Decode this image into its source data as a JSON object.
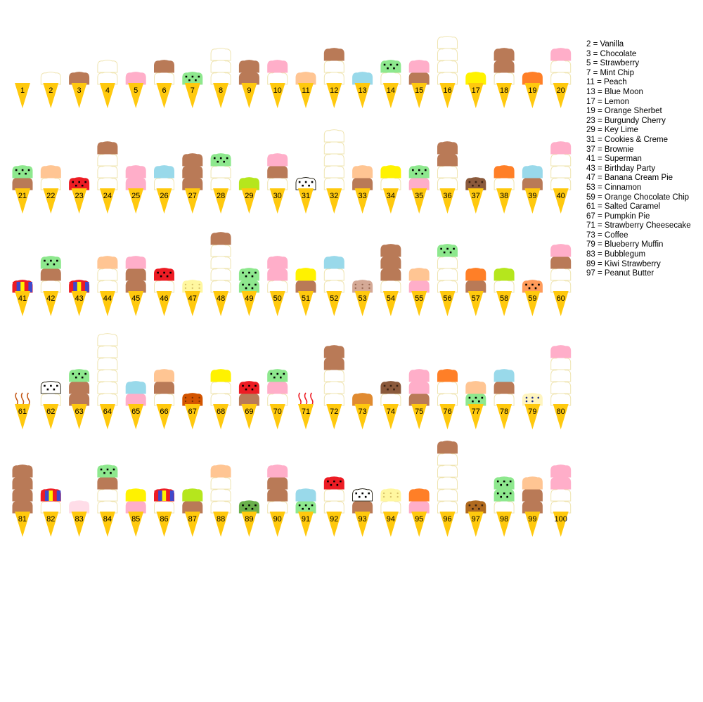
{
  "legend": [
    {
      "num": 2,
      "name": "Vanilla",
      "color": "#ffffff",
      "pattern": "plain"
    },
    {
      "num": 3,
      "name": "Chocolate",
      "color": "#b97a57",
      "pattern": "plain"
    },
    {
      "num": 5,
      "name": "Strawberry",
      "color": "#ffaec9",
      "pattern": "plain"
    },
    {
      "num": 7,
      "name": "Mint Chip",
      "color": "#8ee88e",
      "pattern": "chips"
    },
    {
      "num": 11,
      "name": "Peach",
      "color": "#ffc593",
      "pattern": "plain"
    },
    {
      "num": 13,
      "name": "Blue Moon",
      "color": "#99d9ea",
      "pattern": "plain"
    },
    {
      "num": 17,
      "name": "Lemon",
      "color": "#fff200",
      "pattern": "plain"
    },
    {
      "num": 19,
      "name": "Orange Sherbet",
      "color": "#ff7f27",
      "pattern": "plain"
    },
    {
      "num": 23,
      "name": "Burgundy Cherry",
      "color": "#ed1c24",
      "pattern": "chips"
    },
    {
      "num": 29,
      "name": "Key Lime",
      "color": "#b5e61d",
      "pattern": "plain"
    },
    {
      "num": 31,
      "name": "Cookies & Creme",
      "color": "#ffffff",
      "pattern": "chips"
    },
    {
      "num": 37,
      "name": "Brownie",
      "color": "#8b5a3c",
      "pattern": "chips"
    },
    {
      "num": 41,
      "name": "Superman",
      "color": "#ed1c24",
      "pattern": "superman"
    },
    {
      "num": 43,
      "name": "Birthday Party",
      "color": "#ed1c24",
      "pattern": "birthday"
    },
    {
      "num": 47,
      "name": "Banana Cream Pie",
      "color": "#fff7a0",
      "pattern": "specks"
    },
    {
      "num": 53,
      "name": "Cinnamon",
      "color": "#d4a996",
      "pattern": "specks"
    },
    {
      "num": 59,
      "name": "Orange Chocolate Chip",
      "color": "#ff9b5a",
      "pattern": "chips"
    },
    {
      "num": 61,
      "name": "Salted Caramel",
      "color": "#ffffff",
      "pattern": "caramel"
    },
    {
      "num": 67,
      "name": "Pumpkin Pie",
      "color": "#d35400",
      "pattern": "specks"
    },
    {
      "num": 71,
      "name": "Strawberry Cheesecake",
      "color": "#ffffff",
      "pattern": "swirl"
    },
    {
      "num": 73,
      "name": "Coffee",
      "color": "#e08a30",
      "pattern": "plain"
    },
    {
      "num": 79,
      "name": "Blueberry Muffin",
      "color": "#fff5c0",
      "pattern": "blueberry"
    },
    {
      "num": 83,
      "name": "Bubblegum",
      "color": "#ffdde8",
      "pattern": "plain"
    },
    {
      "num": 89,
      "name": "Kiwi Strawberry",
      "color": "#6ab04c",
      "pattern": "chips"
    },
    {
      "num": 97,
      "name": "Peanut Butter",
      "color": "#b06a1f",
      "pattern": "chips"
    }
  ],
  "legend_text": [
    "2 = Vanilla",
    "3 = Chocolate",
    "5 = Strawberry",
    "7 = Mint Chip",
    "11 = Peach",
    "13 = Blue Moon",
    "17 = Lemon",
    "19 = Orange Sherbet",
    "23 = Burgundy Cherry",
    "29 = Key Lime",
    "31 = Cookies & Creme",
    "37 = Brownie",
    "41 = Superman",
    "43 = Birthday Party",
    "47 = Banana Cream Pie",
    "53 = Cinnamon",
    "59 = Orange Chocolate Chip",
    "61 = Salted Caramel",
    "67 = Pumpkin Pie",
    "71 = Strawberry Cheesecake",
    "73 = Coffee",
    "79 = Blueberry Muffin",
    "83 = Bubblegum",
    "89 = Kiwi Strawberry",
    "97 = Peanut Butter"
  ],
  "cones": [
    {
      "n": 1,
      "label": "1"
    },
    {
      "n": 2,
      "label": "2"
    },
    {
      "n": 3,
      "label": "3"
    },
    {
      "n": 4,
      "label": "4"
    },
    {
      "n": 5,
      "label": "5"
    },
    {
      "n": 6,
      "label": "6"
    },
    {
      "n": 7,
      "label": "7"
    },
    {
      "n": 8,
      "label": "8"
    },
    {
      "n": 9,
      "label": "9"
    },
    {
      "n": 10,
      "label": "10"
    },
    {
      "n": 11,
      "label": "11"
    },
    {
      "n": 12,
      "label": "12"
    },
    {
      "n": 13,
      "label": "13"
    },
    {
      "n": 14,
      "label": "14"
    },
    {
      "n": 15,
      "label": "15"
    },
    {
      "n": 16,
      "label": "16"
    },
    {
      "n": 17,
      "label": "17"
    },
    {
      "n": 18,
      "label": "18"
    },
    {
      "n": 19,
      "label": "19"
    },
    {
      "n": 20,
      "label": "20"
    },
    {
      "n": 21,
      "label": "21"
    },
    {
      "n": 22,
      "label": "22"
    },
    {
      "n": 23,
      "label": "23"
    },
    {
      "n": 24,
      "label": "24"
    },
    {
      "n": 25,
      "label": "25"
    },
    {
      "n": 26,
      "label": "26"
    },
    {
      "n": 27,
      "label": "27"
    },
    {
      "n": 28,
      "label": "28"
    },
    {
      "n": 29,
      "label": "29"
    },
    {
      "n": 30,
      "label": "30"
    },
    {
      "n": 31,
      "label": "31"
    },
    {
      "n": 32,
      "label": "32"
    },
    {
      "n": 33,
      "label": "33"
    },
    {
      "n": 34,
      "label": "34"
    },
    {
      "n": 35,
      "label": "35"
    },
    {
      "n": 36,
      "label": "36"
    },
    {
      "n": 37,
      "label": "37"
    },
    {
      "n": 38,
      "label": "38"
    },
    {
      "n": 39,
      "label": "39"
    },
    {
      "n": 40,
      "label": "40"
    },
    {
      "n": 41,
      "label": "41"
    },
    {
      "n": 42,
      "label": "42"
    },
    {
      "n": 43,
      "label": "43"
    },
    {
      "n": 44,
      "label": "44"
    },
    {
      "n": 45,
      "label": "45"
    },
    {
      "n": 46,
      "label": "46"
    },
    {
      "n": 47,
      "label": "47"
    },
    {
      "n": 48,
      "label": "48"
    },
    {
      "n": 49,
      "label": "49"
    },
    {
      "n": 50,
      "label": "50"
    },
    {
      "n": 51,
      "label": "51"
    },
    {
      "n": 52,
      "label": "52"
    },
    {
      "n": 53,
      "label": "53"
    },
    {
      "n": 54,
      "label": "54"
    },
    {
      "n": 55,
      "label": "55"
    },
    {
      "n": 56,
      "label": "56"
    },
    {
      "n": 57,
      "label": "57"
    },
    {
      "n": 58,
      "label": "58"
    },
    {
      "n": 59,
      "label": "59"
    },
    {
      "n": 60,
      "label": "60"
    },
    {
      "n": 61,
      "label": "61"
    },
    {
      "n": 62,
      "label": "62"
    },
    {
      "n": 63,
      "label": "63"
    },
    {
      "n": 64,
      "label": "64"
    },
    {
      "n": 65,
      "label": "65"
    },
    {
      "n": 66,
      "label": "66"
    },
    {
      "n": 67,
      "label": "67"
    },
    {
      "n": 68,
      "label": "68"
    },
    {
      "n": 69,
      "label": "69"
    },
    {
      "n": 70,
      "label": "70"
    },
    {
      "n": 71,
      "label": "71"
    },
    {
      "n": 72,
      "label": "72"
    },
    {
      "n": 73,
      "label": "73"
    },
    {
      "n": 74,
      "label": "74"
    },
    {
      "n": 75,
      "label": "75"
    },
    {
      "n": 76,
      "label": "76"
    },
    {
      "n": 77,
      "label": "77"
    },
    {
      "n": 78,
      "label": "78"
    },
    {
      "n": 79,
      "label": "79"
    },
    {
      "n": 80,
      "label": "80"
    },
    {
      "n": 81,
      "label": "81"
    },
    {
      "n": 82,
      "label": "82"
    },
    {
      "n": 83,
      "label": "83"
    },
    {
      "n": 84,
      "label": "84"
    },
    {
      "n": 85,
      "label": "85"
    },
    {
      "n": 86,
      "label": "86"
    },
    {
      "n": 87,
      "label": "87"
    },
    {
      "n": 88,
      "label": "88"
    },
    {
      "n": 89,
      "label": "89"
    },
    {
      "n": 90,
      "label": "90"
    },
    {
      "n": 91,
      "label": "91"
    },
    {
      "n": 92,
      "label": "92"
    },
    {
      "n": 93,
      "label": "93"
    },
    {
      "n": 94,
      "label": "94"
    },
    {
      "n": 95,
      "label": "95"
    },
    {
      "n": 96,
      "label": "96"
    },
    {
      "n": 97,
      "label": "97"
    },
    {
      "n": 98,
      "label": "98"
    },
    {
      "n": 99,
      "label": "99"
    },
    {
      "n": 100,
      "label": "100"
    }
  ],
  "cone_color": "#ffc90e",
  "scoop_outline": "#efe4b0"
}
